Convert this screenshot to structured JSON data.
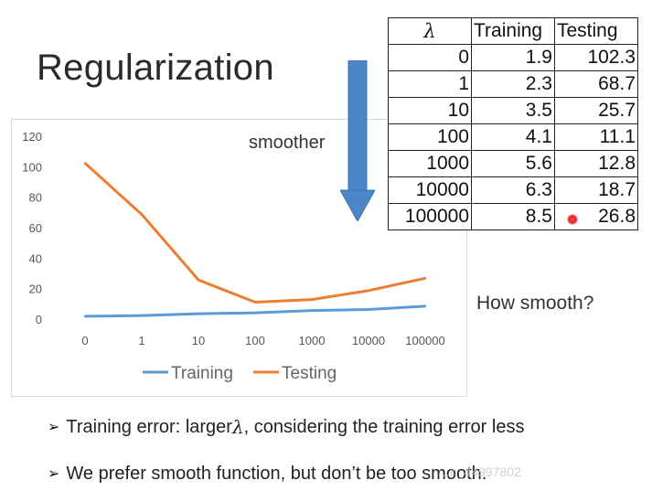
{
  "slide": {
    "title": "Regularization",
    "arrow_label": "smoother",
    "side_note": "How smooth?"
  },
  "table": {
    "headers": [
      "λ",
      "Training",
      "Testing"
    ],
    "rows": [
      [
        "0",
        "1.9",
        "102.3"
      ],
      [
        "1",
        "2.3",
        "68.7"
      ],
      [
        "10",
        "3.5",
        "25.7"
      ],
      [
        "100",
        "4.1",
        "11.1"
      ],
      [
        "1000",
        "5.6",
        "12.8"
      ],
      [
        "10000",
        "6.3",
        "18.7"
      ],
      [
        "100000",
        "8.5",
        "26.8"
      ]
    ]
  },
  "bullets": {
    "b1_prefix": "Training error: larger",
    "b1_lambda": "λ",
    "b1_suffix": ", considering the training error less",
    "b2": "We prefer smooth function, but don’t be too smooth."
  },
  "watermark": "…n_44997802",
  "colors": {
    "training": "#5b9bd5",
    "testing": "#ed7d31",
    "arrow": "#4a86c8"
  },
  "chart_data": {
    "type": "line",
    "title": "",
    "xlabel": "",
    "ylabel": "",
    "categories": [
      "0",
      "1",
      "10",
      "100",
      "1000",
      "10000",
      "100000"
    ],
    "series": [
      {
        "name": "Training",
        "values": [
          1.9,
          2.3,
          3.5,
          4.1,
          5.6,
          6.3,
          8.5
        ]
      },
      {
        "name": "Testing",
        "values": [
          102.3,
          68.7,
          25.7,
          11.1,
          12.8,
          18.7,
          26.8
        ]
      }
    ],
    "yticks": [
      0,
      20,
      40,
      60,
      80,
      100,
      120
    ],
    "ylim": [
      0,
      120
    ],
    "grid": false,
    "legend": "bottom"
  }
}
